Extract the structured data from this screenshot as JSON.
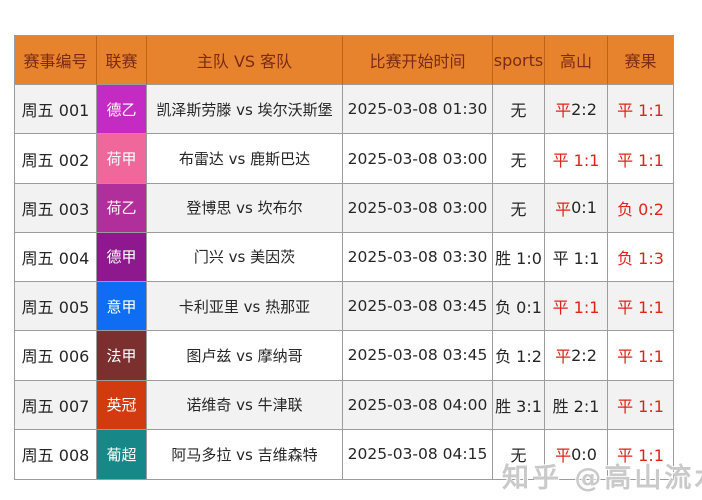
{
  "watermark": {
    "text": "知乎 @高山流水"
  },
  "colors": {
    "header_bg": "#E8832D",
    "header_text": "#7A2A16",
    "border": "#9C9C9C",
    "row_odd_bg": "#F2F2F2",
    "row_even_bg": "#FFFFFF",
    "red_text": "#DE231B",
    "black_text": "#262626",
    "badge_text": "#FFFFFF"
  },
  "table": {
    "columns": [
      "赛事编号",
      "联赛",
      "主队 VS 客队",
      "比赛开始时间",
      "sports",
      "高山",
      "赛果"
    ],
    "rows": [
      {
        "id": "周五 001",
        "league": {
          "label": "德乙",
          "color": "#C32BC3"
        },
        "match": "凯泽斯劳滕 vs 埃尔沃斯堡",
        "time": "2025-03-08 01:30",
        "sports": [
          {
            "text": "无",
            "red": false
          }
        ],
        "gaoshan": [
          {
            "text": "平 ",
            "red": true
          },
          {
            "text": "2:2",
            "red": false
          }
        ],
        "result": [
          {
            "text": "平 1:1",
            "red": true
          }
        ]
      },
      {
        "id": "周五 002",
        "league": {
          "label": "荷甲",
          "color": "#F0679B"
        },
        "match": "布雷达 vs 鹿斯巴达",
        "time": "2025-03-08 03:00",
        "sports": [
          {
            "text": "无",
            "red": false
          }
        ],
        "gaoshan": [
          {
            "text": "平 1:1",
            "red": true
          }
        ],
        "result": [
          {
            "text": "平 1:1",
            "red": true
          }
        ]
      },
      {
        "id": "周五 003",
        "league": {
          "label": "荷乙",
          "color": "#B02F9B"
        },
        "match": "登博思 vs 坎布尔",
        "time": "2025-03-08 03:00",
        "sports": [
          {
            "text": "无",
            "red": false
          }
        ],
        "gaoshan": [
          {
            "text": "平 ",
            "red": true
          },
          {
            "text": "0:1",
            "red": false
          }
        ],
        "result": [
          {
            "text": "负 0:2",
            "red": true
          }
        ]
      },
      {
        "id": "周五 004",
        "league": {
          "label": "德甲",
          "color": "#8E198E"
        },
        "match": "门兴 vs 美因茨",
        "time": "2025-03-08 03:30",
        "sports": [
          {
            "text": "胜 1:0",
            "red": false
          }
        ],
        "gaoshan": [
          {
            "text": "平 1:1",
            "red": false
          }
        ],
        "result": [
          {
            "text": "负 1:3",
            "red": true
          }
        ]
      },
      {
        "id": "周五 005",
        "league": {
          "label": "意甲",
          "color": "#0E6DF2"
        },
        "match": "卡利亚里 vs 热那亚",
        "time": "2025-03-08 03:45",
        "sports": [
          {
            "text": "负 0:1",
            "red": false
          }
        ],
        "gaoshan": [
          {
            "text": "平 1:1",
            "red": true
          }
        ],
        "result": [
          {
            "text": "平 1:1",
            "red": true
          }
        ]
      },
      {
        "id": "周五 006",
        "league": {
          "label": "法甲",
          "color": "#7B2F2F"
        },
        "match": "图卢兹 vs 摩纳哥",
        "time": "2025-03-08 03:45",
        "sports": [
          {
            "text": "负 1:2",
            "red": false
          }
        ],
        "gaoshan": [
          {
            "text": "平 ",
            "red": true
          },
          {
            "text": "2:2",
            "red": false
          }
        ],
        "result": [
          {
            "text": "平 1:1",
            "red": true
          }
        ]
      },
      {
        "id": "周五 007",
        "league": {
          "label": "英冠",
          "color": "#D23A10"
        },
        "match": "诺维奇 vs 牛津联",
        "time": "2025-03-08 04:00",
        "sports": [
          {
            "text": "胜 3:1",
            "red": false
          }
        ],
        "gaoshan": [
          {
            "text": "胜 2:1",
            "red": false
          }
        ],
        "result": [
          {
            "text": "平 1:1",
            "red": true
          }
        ]
      },
      {
        "id": "周五 008",
        "league": {
          "label": "葡超",
          "color": "#178787"
        },
        "match": "阿马多拉 vs 吉维森特",
        "time": "2025-03-08 04:15",
        "sports": [
          {
            "text": "无",
            "red": false
          }
        ],
        "gaoshan": [
          {
            "text": "平 ",
            "red": true
          },
          {
            "text": "0:0",
            "red": false
          }
        ],
        "result": [
          {
            "text": "平 1:1",
            "red": true
          }
        ]
      }
    ]
  },
  "chart_data": {
    "type": "table",
    "title": "",
    "columns": [
      "赛事编号",
      "联赛",
      "主队 VS 客队",
      "比赛开始时间",
      "sports",
      "高山",
      "赛果"
    ],
    "rows": [
      [
        "周五 001",
        "德乙",
        "凯泽斯劳滕 vs 埃尔沃斯堡",
        "2025-03-08 01:30",
        "无",
        "平 2:2",
        "平 1:1"
      ],
      [
        "周五 002",
        "荷甲",
        "布雷达 vs 鹿斯巴达",
        "2025-03-08 03:00",
        "无",
        "平 1:1",
        "平 1:1"
      ],
      [
        "周五 003",
        "荷乙",
        "登博思 vs 坎布尔",
        "2025-03-08 03:00",
        "无",
        "平 0:1",
        "负 0:2"
      ],
      [
        "周五 004",
        "德甲",
        "门兴 vs 美因茨",
        "2025-03-08 03:30",
        "胜 1:0",
        "平 1:1",
        "负 1:3"
      ],
      [
        "周五 005",
        "意甲",
        "卡利亚里 vs 热那亚",
        "2025-03-08 03:45",
        "负 0:1",
        "平 1:1",
        "平 1:1"
      ],
      [
        "周五 006",
        "法甲",
        "图卢兹 vs 摩纳哥",
        "2025-03-08 03:45",
        "负 1:2",
        "平 2:2",
        "平 1:1"
      ],
      [
        "周五 007",
        "英冠",
        "诺维奇 vs 牛津联",
        "2025-03-08 04:00",
        "胜 3:1",
        "胜 2:1",
        "平 1:1"
      ],
      [
        "周五 008",
        "葡超",
        "阿马多拉 vs 吉维森特",
        "2025-03-08 04:15",
        "无",
        "平 0:0",
        "平 1:1"
      ]
    ]
  }
}
